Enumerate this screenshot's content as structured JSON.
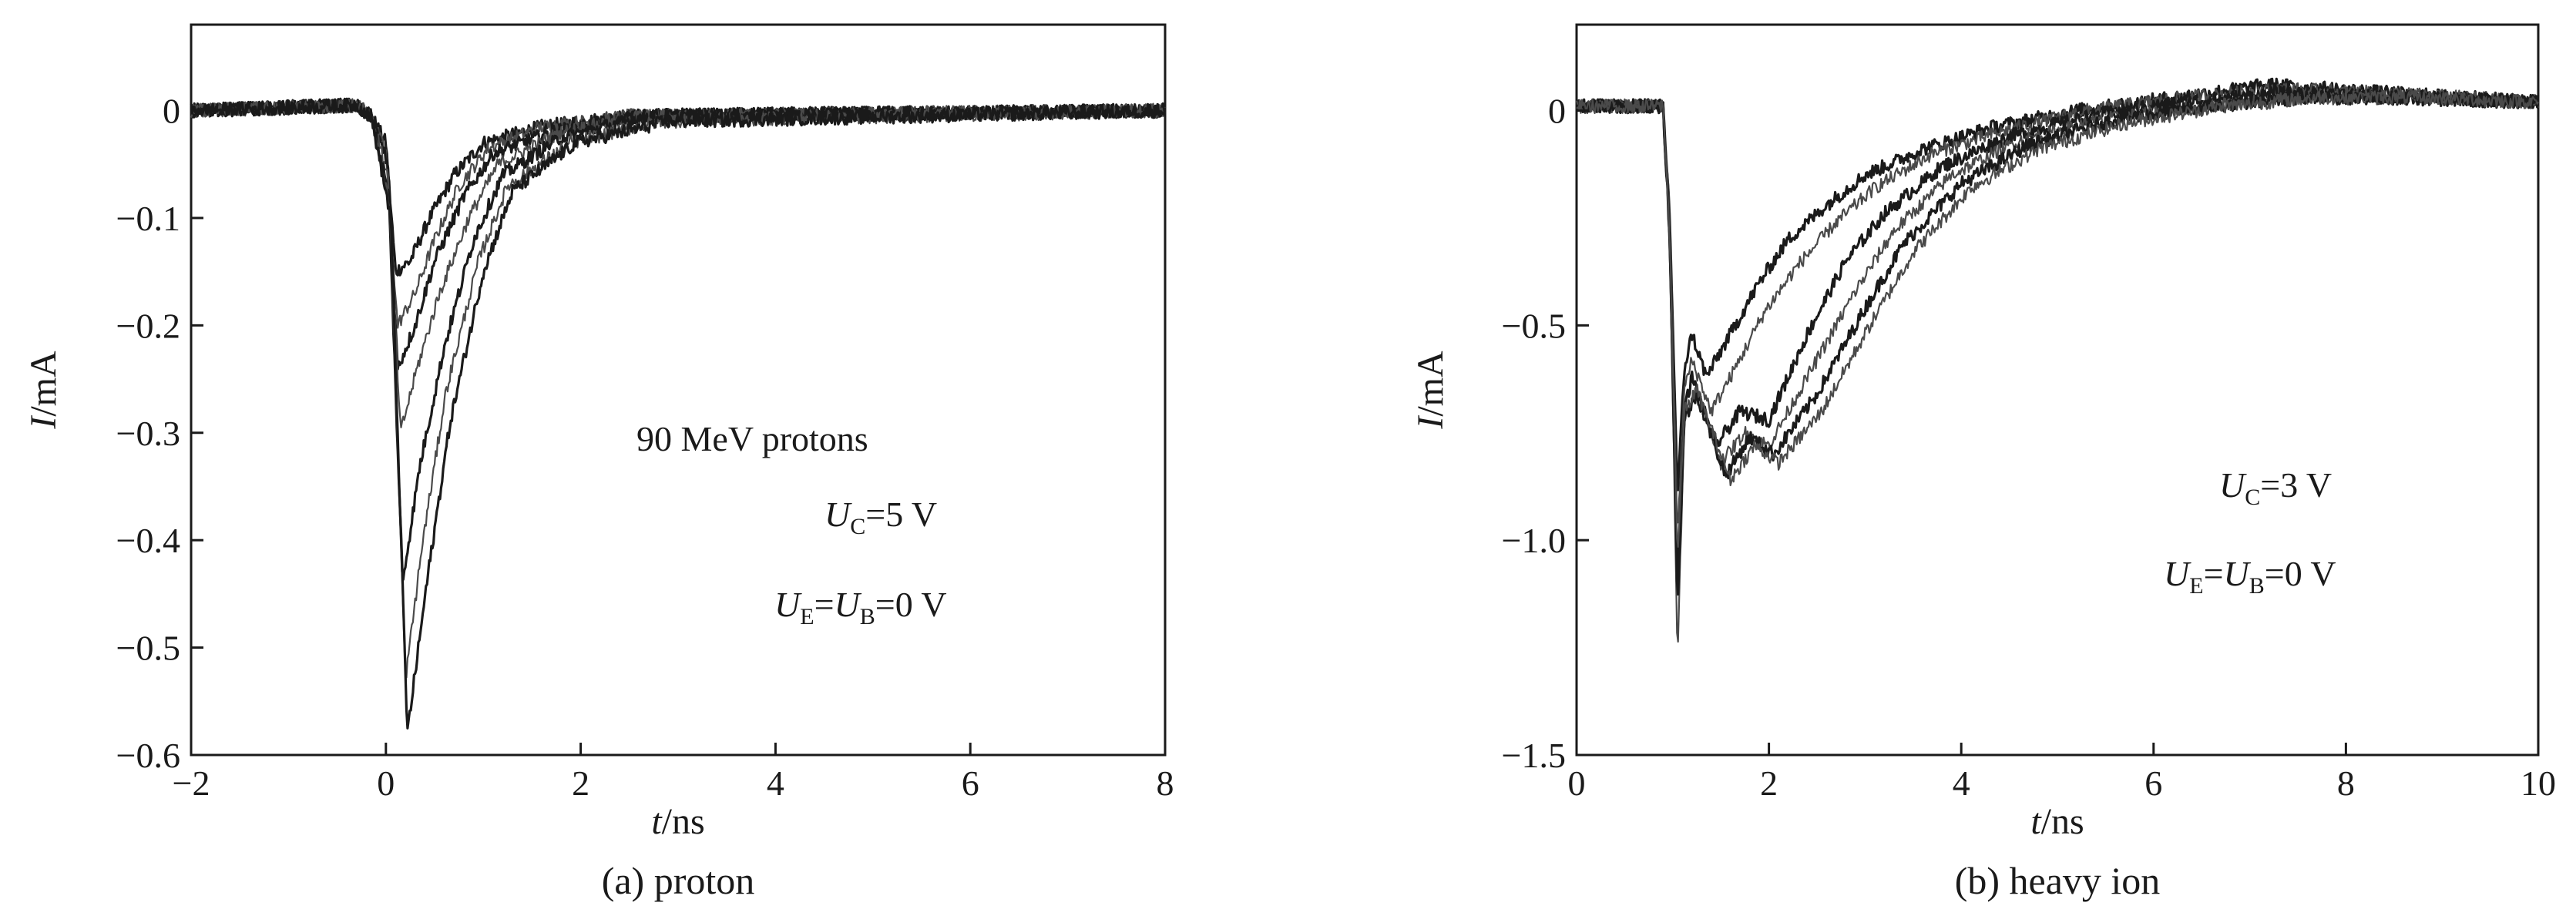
{
  "chart_data": [
    {
      "type": "line",
      "caption": "(a) proton",
      "xlabel": {
        "symbol": "t",
        "unit": "/ns"
      },
      "ylabel": {
        "symbol": "I",
        "unit": "/mA"
      },
      "xlim": [
        -2,
        8
      ],
      "ylim": [
        -0.6,
        0.08
      ],
      "xticks": [
        -2,
        0,
        2,
        4,
        6,
        8
      ],
      "xtick_labels": [
        "−2",
        "0",
        "2",
        "4",
        "6",
        "8"
      ],
      "yticks": [
        0,
        -0.1,
        -0.2,
        -0.3,
        -0.4,
        -0.5,
        -0.6
      ],
      "ytick_labels": [
        "0",
        "−0.1",
        "−0.2",
        "−0.3",
        "−0.4",
        "−0.5",
        "−0.6"
      ],
      "grid": false,
      "line_color": "#1a1a1a",
      "annotations": [
        {
          "parts": [
            {
              "t": "90 MeV protons",
              "s": "n"
            }
          ]
        },
        {
          "parts": [
            {
              "t": "U",
              "s": "i"
            },
            {
              "t": "C",
              "s": "sub"
            },
            {
              "t": "=5 V",
              "s": "n"
            }
          ]
        },
        {
          "parts": [
            {
              "t": "U",
              "s": "i"
            },
            {
              "t": "E",
              "s": "sub"
            },
            {
              "t": "=",
              "s": "n"
            },
            {
              "t": "U",
              "s": "i"
            },
            {
              "t": "B",
              "s": "sub"
            },
            {
              "t": "=0 V",
              "s": "n"
            }
          ]
        }
      ],
      "series": [
        {
          "x": [
            -2.0,
            -0.3,
            -0.15,
            0.0,
            0.1,
            0.25,
            0.45,
            0.7,
            1.0,
            1.6,
            2.5,
            8.0
          ],
          "y": [
            0,
            0.005,
            -0.005,
            -0.03,
            -0.15,
            -0.14,
            -0.1,
            -0.06,
            -0.03,
            -0.015,
            -0.005,
            0
          ]
        },
        {
          "x": [
            -2.0,
            -0.3,
            -0.15,
            0.0,
            0.12,
            0.3,
            0.5,
            0.75,
            1.05,
            1.6,
            2.5,
            8.0
          ],
          "y": [
            0,
            0.005,
            -0.005,
            -0.04,
            -0.2,
            -0.17,
            -0.12,
            -0.07,
            -0.035,
            -0.015,
            -0.005,
            0
          ]
        },
        {
          "x": [
            -2.0,
            -0.3,
            -0.15,
            0.02,
            0.12,
            0.3,
            0.5,
            0.8,
            1.1,
            1.7,
            2.6,
            8.0
          ],
          "y": [
            0,
            0.005,
            -0.005,
            -0.05,
            -0.24,
            -0.2,
            -0.14,
            -0.08,
            -0.04,
            -0.02,
            -0.005,
            0
          ]
        },
        {
          "x": [
            -2.0,
            -0.3,
            -0.15,
            0.02,
            0.15,
            0.32,
            0.55,
            0.85,
            1.15,
            1.8,
            2.6,
            8.0
          ],
          "y": [
            0,
            0.005,
            -0.005,
            -0.06,
            -0.3,
            -0.24,
            -0.17,
            -0.1,
            -0.05,
            -0.02,
            -0.005,
            0
          ]
        },
        {
          "x": [
            -2.0,
            -0.3,
            -0.15,
            0.03,
            0.17,
            0.35,
            0.6,
            0.9,
            1.2,
            1.8,
            2.7,
            8.0
          ],
          "y": [
            0,
            0.005,
            -0.005,
            -0.08,
            -0.44,
            -0.33,
            -0.22,
            -0.12,
            -0.06,
            -0.025,
            -0.005,
            0
          ]
        },
        {
          "x": [
            -2.0,
            -0.3,
            -0.15,
            0.04,
            0.2,
            0.38,
            0.62,
            0.95,
            1.25,
            1.9,
            2.8,
            8.0
          ],
          "y": [
            0,
            0.005,
            -0.005,
            -0.09,
            -0.53,
            -0.4,
            -0.26,
            -0.14,
            -0.07,
            -0.03,
            -0.01,
            0
          ]
        },
        {
          "x": [
            -2.0,
            -0.3,
            -0.15,
            0.05,
            0.22,
            0.42,
            0.66,
            1.0,
            1.3,
            1.95,
            2.9,
            8.0
          ],
          "y": [
            0,
            0.005,
            -0.005,
            -0.1,
            -0.58,
            -0.44,
            -0.29,
            -0.15,
            -0.075,
            -0.03,
            -0.01,
            0
          ]
        }
      ]
    },
    {
      "type": "line",
      "caption": "(b) heavy ion",
      "xlabel": {
        "symbol": "t",
        "unit": "/ns"
      },
      "ylabel": {
        "symbol": "I",
        "unit": "/mA"
      },
      "xlim": [
        0,
        10
      ],
      "ylim": [
        -1.5,
        0.2
      ],
      "xticks": [
        0,
        2,
        4,
        6,
        8,
        10
      ],
      "xtick_labels": [
        "0",
        "2",
        "4",
        "6",
        "8",
        "10"
      ],
      "yticks": [
        0,
        -0.5,
        -1.0,
        -1.5
      ],
      "ytick_labels": [
        "0",
        "−0.5",
        "−1.0",
        "−1.5"
      ],
      "grid": false,
      "line_color": "#1a1a1a",
      "annotations": [
        {
          "parts": [
            {
              "t": "U",
              "s": "i"
            },
            {
              "t": "C",
              "s": "sub"
            },
            {
              "t": "=3 V",
              "s": "n"
            }
          ]
        },
        {
          "parts": [
            {
              "t": "U",
              "s": "i"
            },
            {
              "t": "E",
              "s": "sub"
            },
            {
              "t": "=",
              "s": "n"
            },
            {
              "t": "U",
              "s": "i"
            },
            {
              "t": "B",
              "s": "sub"
            },
            {
              "t": "=0 V",
              "s": "n"
            }
          ]
        }
      ],
      "series": [
        {
          "x": [
            0.0,
            0.9,
            0.97,
            1.05,
            1.12,
            1.2,
            1.35,
            1.6,
            1.9,
            2.2,
            2.6,
            3.0,
            3.6,
            4.3,
            5.2,
            6.2,
            7.2,
            8.5,
            10.0
          ],
          "y": [
            0.01,
            0.01,
            -0.25,
            -0.9,
            -0.6,
            -0.52,
            -0.62,
            -0.52,
            -0.4,
            -0.3,
            -0.22,
            -0.15,
            -0.09,
            -0.04,
            0.0,
            0.03,
            0.06,
            0.04,
            0.02
          ]
        },
        {
          "x": [
            0.0,
            0.9,
            0.97,
            1.05,
            1.12,
            1.2,
            1.4,
            1.65,
            1.95,
            2.3,
            2.7,
            3.1,
            3.7,
            4.4,
            5.3,
            6.3,
            7.3,
            8.5,
            10.0
          ],
          "y": [
            0.01,
            0.01,
            -0.25,
            -1.0,
            -0.65,
            -0.58,
            -0.7,
            -0.6,
            -0.47,
            -0.36,
            -0.26,
            -0.18,
            -0.1,
            -0.05,
            0.0,
            0.03,
            0.05,
            0.04,
            0.02
          ]
        },
        {
          "x": [
            0.0,
            0.9,
            0.97,
            1.05,
            1.12,
            1.2,
            1.45,
            1.7,
            2.0,
            2.4,
            2.8,
            3.2,
            3.8,
            4.5,
            5.4,
            6.3,
            7.3,
            8.5,
            10.0
          ],
          "y": [
            0.01,
            0.01,
            -0.3,
            -1.1,
            -0.7,
            -0.62,
            -0.78,
            -0.7,
            -0.72,
            -0.52,
            -0.35,
            -0.24,
            -0.13,
            -0.06,
            -0.01,
            0.02,
            0.04,
            0.03,
            0.02
          ]
        },
        {
          "x": [
            0.0,
            0.9,
            0.97,
            1.05,
            1.12,
            1.25,
            1.5,
            1.75,
            2.0,
            2.4,
            2.9,
            3.3,
            3.9,
            4.6,
            5.5,
            6.5,
            7.5,
            8.6,
            10.0
          ],
          "y": [
            0.01,
            0.01,
            -0.3,
            -1.27,
            -0.72,
            -0.65,
            -0.82,
            -0.75,
            -0.78,
            -0.62,
            -0.42,
            -0.28,
            -0.15,
            -0.07,
            -0.02,
            0.01,
            0.03,
            0.03,
            0.02
          ]
        },
        {
          "x": [
            0.0,
            0.9,
            0.97,
            1.05,
            1.12,
            1.25,
            1.55,
            1.8,
            2.05,
            2.5,
            3.0,
            3.4,
            4.0,
            4.7,
            5.6,
            6.6,
            7.6,
            8.7,
            10.0
          ],
          "y": [
            0.01,
            0.01,
            -0.3,
            -1.15,
            -0.72,
            -0.66,
            -0.85,
            -0.76,
            -0.8,
            -0.66,
            -0.46,
            -0.31,
            -0.17,
            -0.08,
            -0.02,
            0.01,
            0.03,
            0.03,
            0.02
          ]
        },
        {
          "x": [
            0.0,
            0.9,
            0.97,
            1.05,
            1.12,
            1.25,
            1.6,
            1.85,
            2.1,
            2.55,
            3.05,
            3.5,
            4.1,
            4.8,
            5.7,
            6.7,
            7.7,
            8.8,
            10.0
          ],
          "y": [
            0.01,
            0.01,
            -0.3,
            -1.05,
            -0.7,
            -0.65,
            -0.86,
            -0.78,
            -0.82,
            -0.7,
            -0.5,
            -0.33,
            -0.18,
            -0.09,
            -0.03,
            0.01,
            0.03,
            0.03,
            0.02
          ]
        }
      ]
    }
  ]
}
